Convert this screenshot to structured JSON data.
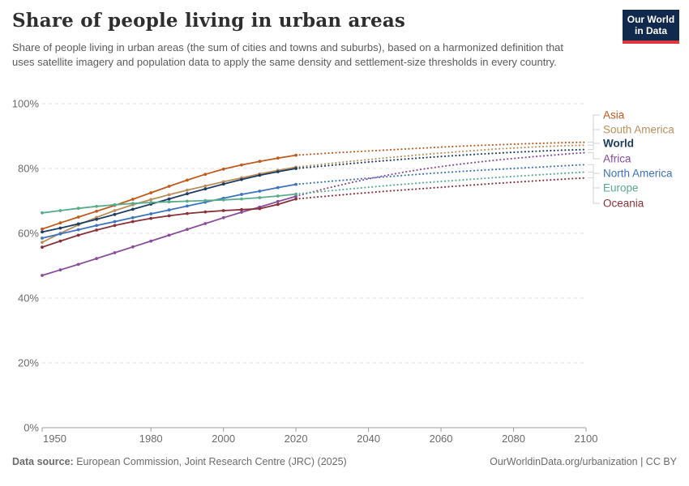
{
  "header": {
    "title": "Share of people living in urban areas",
    "subtitle": "Share of people living in urban areas (the sum of cities and towns and suburbs), based on a harmonized definition that uses satellite imagery and population data to apply the same density and settlement-size thresholds in every country.",
    "logo_line1": "Our World",
    "logo_line2": "in Data",
    "logo_bg_color": "#12294e",
    "logo_bar_color": "#e0373f"
  },
  "footer": {
    "source_label": "Data source:",
    "source_text": "European Commission, Joint Research Centre (JRC) (2025)",
    "credit": "OurWorldinData.org/urbanization | CC BY"
  },
  "chart_data": {
    "type": "line",
    "title": "Share of people living in urban areas",
    "xlabel": "",
    "ylabel": "",
    "xlim": [
      1950,
      2100
    ],
    "ylim": [
      0,
      100
    ],
    "grid": "dashed-horizontal",
    "legend_position": "right",
    "projection_note": "values after 2020 are projections drawn as dotted lines",
    "x_ticks": [
      1950,
      1980,
      2000,
      2020,
      2040,
      2060,
      2080,
      2100
    ],
    "y_ticks": [
      0,
      20,
      40,
      60,
      80,
      100
    ],
    "y_tick_labels": [
      "0%",
      "20%",
      "40%",
      "60%",
      "80%",
      "100%"
    ],
    "years_history": [
      1950,
      1955,
      1960,
      1965,
      1970,
      1975,
      1980,
      1985,
      1990,
      1995,
      2000,
      2005,
      2010,
      2015,
      2020
    ],
    "years_projection": [
      2020,
      2025,
      2030,
      2035,
      2040,
      2045,
      2050,
      2055,
      2060,
      2065,
      2070,
      2075,
      2080,
      2085,
      2090,
      2095,
      2100
    ],
    "series": [
      {
        "name": "Asia",
        "color": "#C05A1D",
        "bold": false,
        "history": [
          61.3,
          63.2,
          65.0,
          66.8,
          68.6,
          70.5,
          72.5,
          74.5,
          76.4,
          78.2,
          79.8,
          81.1,
          82.2,
          83.2,
          84.1
        ],
        "projection": [
          84.1,
          84.45,
          84.8,
          85.1,
          85.4,
          85.7,
          86.0,
          86.3,
          86.6,
          86.85,
          87.1,
          87.3,
          87.5,
          87.7,
          87.85,
          88.0,
          88.1
        ]
      },
      {
        "name": "South America",
        "color": "#BC8E5A",
        "bold": false,
        "history": [
          57.2,
          60.0,
          62.6,
          64.9,
          67.0,
          68.8,
          70.4,
          71.9,
          73.3,
          74.6,
          75.9,
          77.1,
          78.3,
          79.4,
          80.4
        ],
        "projection": [
          80.4,
          81.0,
          81.6,
          82.2,
          82.75,
          83.3,
          83.8,
          84.3,
          84.75,
          85.2,
          85.6,
          86.0,
          86.3,
          86.6,
          86.85,
          87.05,
          87.2
        ]
      },
      {
        "name": "World",
        "color": "#1D3D63",
        "bold": true,
        "history": [
          60.4,
          61.6,
          62.9,
          64.3,
          65.8,
          67.4,
          69.0,
          70.6,
          72.2,
          73.7,
          75.2,
          76.6,
          77.9,
          79.0,
          80.0
        ],
        "projection": [
          80.0,
          80.5,
          81.0,
          81.5,
          82.0,
          82.45,
          82.9,
          83.3,
          83.7,
          84.05,
          84.4,
          84.7,
          85.0,
          85.25,
          85.5,
          85.7,
          85.85
        ]
      },
      {
        "name": "Africa",
        "color": "#8A4B9D",
        "bold": false,
        "history": [
          47.0,
          48.7,
          50.4,
          52.2,
          54.0,
          55.8,
          57.6,
          59.4,
          61.2,
          63.0,
          64.8,
          66.5,
          68.1,
          69.8,
          71.4
        ],
        "projection": [
          71.4,
          72.9,
          74.3,
          75.6,
          76.8,
          77.9,
          78.9,
          79.8,
          80.6,
          81.3,
          81.95,
          82.55,
          83.1,
          83.6,
          84.05,
          84.5,
          84.9
        ]
      },
      {
        "name": "North America",
        "color": "#3D73BE",
        "bold": false,
        "history": [
          58.5,
          59.8,
          61.1,
          62.4,
          63.6,
          64.8,
          66.0,
          67.2,
          68.4,
          69.6,
          70.8,
          72.0,
          73.0,
          74.1,
          75.1
        ],
        "projection": [
          75.1,
          75.6,
          76.1,
          76.55,
          77.0,
          77.45,
          77.9,
          78.3,
          78.7,
          79.05,
          79.4,
          79.7,
          80.0,
          80.3,
          80.6,
          80.9,
          81.2
        ]
      },
      {
        "name": "Europe",
        "color": "#58AC8C",
        "bold": false,
        "history": [
          66.3,
          67.0,
          67.7,
          68.3,
          68.8,
          69.2,
          69.5,
          69.7,
          69.9,
          70.1,
          70.3,
          70.6,
          71.0,
          71.5,
          72.1
        ],
        "projection": [
          72.1,
          72.65,
          73.2,
          73.7,
          74.2,
          74.7,
          75.15,
          75.6,
          76.0,
          76.4,
          76.8,
          77.2,
          77.55,
          77.9,
          78.25,
          78.6,
          78.9
        ]
      },
      {
        "name": "Oceania",
        "color": "#8A3039",
        "bold": false,
        "history": [
          55.7,
          57.6,
          59.4,
          61.0,
          62.4,
          63.6,
          64.6,
          65.4,
          66.1,
          66.6,
          67.0,
          67.3,
          67.6,
          68.9,
          70.6
        ],
        "projection": [
          70.6,
          71.1,
          71.6,
          72.1,
          72.55,
          73.0,
          73.4,
          73.8,
          74.2,
          74.6,
          75.0,
          75.4,
          75.75,
          76.1,
          76.45,
          76.8,
          77.1
        ]
      }
    ]
  }
}
